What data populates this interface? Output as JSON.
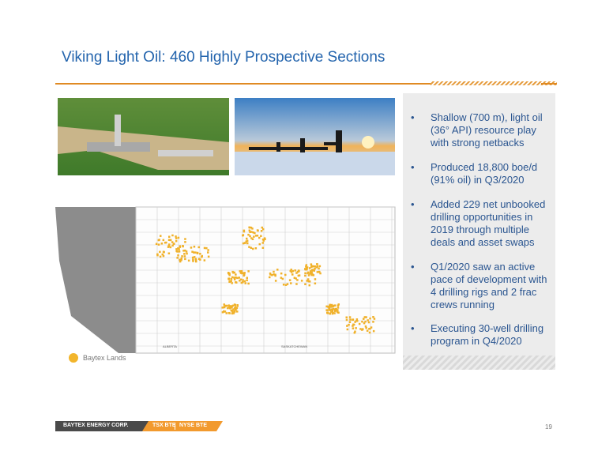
{
  "header": {
    "title": "Viking Light Oil:  460 Highly Prospective Sections"
  },
  "bullets": [
    "Shallow (700 m), light oil (36° API) resource play with strong netbacks",
    "Produced 18,800 boe/d (91% oil) in Q3/2020",
    "Added 229 net unbooked drilling opportunities in 2019 through multiple deals and asset swaps",
    "Q1/2020 saw an active pace of development with 4 drilling rigs and 2 frac crews running",
    "Executing 30-well drilling program in Q4/2020"
  ],
  "map": {
    "labels": [
      "ALBERTA",
      "SASKATCHEWAN"
    ],
    "legend": "Baytex Lands"
  },
  "footer": {
    "company": "BAYTEX ENERGY CORP.",
    "tsx": "TSX BTE",
    "nyse": "NYSE BTE",
    "page": "19"
  }
}
